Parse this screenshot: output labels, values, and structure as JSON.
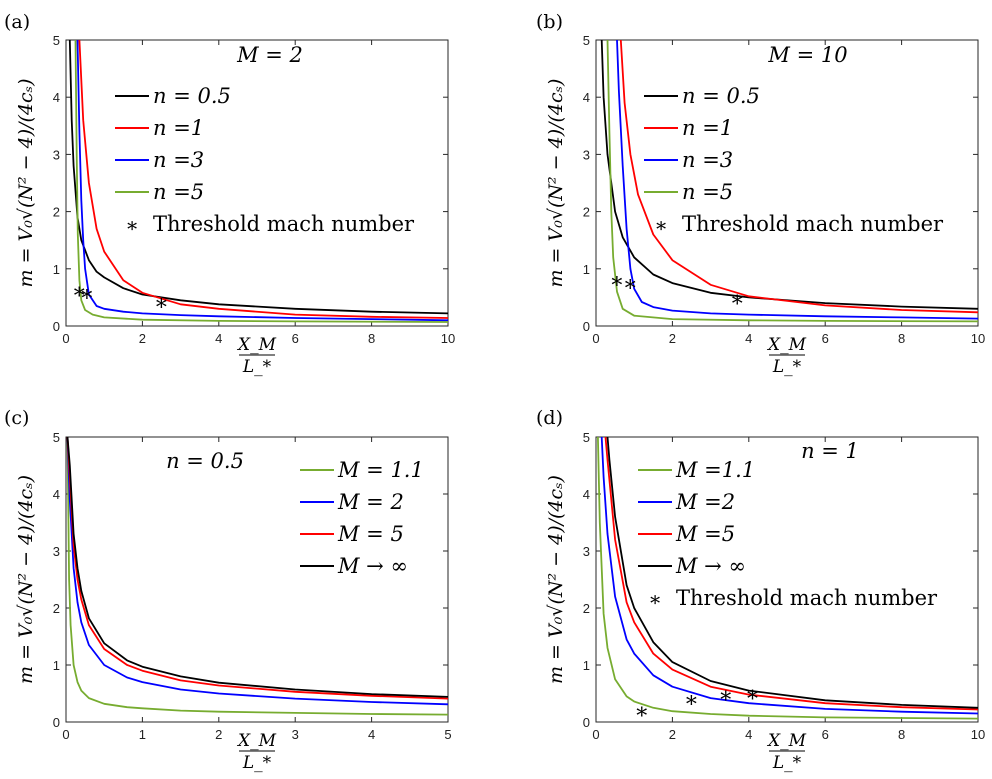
{
  "panels": [
    {
      "label": "(a)",
      "annotation": "M = 2",
      "xlabel_num": "X_M",
      "xlabel_den": "L_*",
      "ylabel": "m = V₀√(N² − 4)/(4cₛ)",
      "chart_data": {
        "type": "line",
        "xlim": [
          0,
          10
        ],
        "ylim": [
          0,
          5
        ],
        "xticks": [
          0,
          2,
          4,
          6,
          8,
          10
        ],
        "yticks": [
          0,
          1,
          2,
          3,
          4,
          5
        ],
        "series": [
          {
            "name": "n = 0.5",
            "color": "#000000",
            "x": [
              0.1,
              0.15,
              0.2,
              0.3,
              0.4,
              0.6,
              0.8,
              1,
              1.5,
              2,
              3,
              4,
              6,
              8,
              10
            ],
            "y": [
              5,
              3.6,
              2.8,
              1.9,
              1.5,
              1.15,
              0.95,
              0.85,
              0.66,
              0.55,
              0.45,
              0.38,
              0.3,
              0.25,
              0.22
            ]
          },
          {
            "name": "n =1",
            "color": "#ff0000",
            "x": [
              0.35,
              0.45,
              0.6,
              0.8,
              1,
              1.5,
              2,
              3,
              4,
              6,
              8,
              10
            ],
            "y": [
              5,
              3.6,
              2.5,
              1.7,
              1.3,
              0.8,
              0.58,
              0.38,
              0.3,
              0.2,
              0.16,
              0.14
            ]
          },
          {
            "name": "n =3",
            "color": "#0000ff",
            "x": [
              0.3,
              0.35,
              0.4,
              0.45,
              0.5,
              0.6,
              0.8,
              1,
              1.5,
              2,
              3,
              4,
              6,
              8,
              10
            ],
            "y": [
              5,
              3.4,
              2.2,
              1.5,
              1.0,
              0.55,
              0.35,
              0.3,
              0.25,
              0.22,
              0.19,
              0.17,
              0.14,
              0.12,
              0.1
            ]
          },
          {
            "name": "n =5",
            "color": "#77ac30",
            "x": [
              0.25,
              0.28,
              0.31,
              0.35,
              0.4,
              0.5,
              0.7,
              1,
              2,
              4,
              6,
              10
            ],
            "y": [
              5,
              3.0,
              1.6,
              0.8,
              0.45,
              0.28,
              0.2,
              0.15,
              0.11,
              0.09,
              0.08,
              0.07
            ]
          }
        ],
        "markers": {
          "name": "Threshold mach number",
          "x": [
            0.35,
            0.55,
            2.5
          ],
          "y": [
            0.62,
            0.58,
            0.42
          ]
        }
      }
    },
    {
      "label": "(b)",
      "annotation": "M = 10",
      "xlabel_num": "X_M",
      "xlabel_den": "L_*",
      "ylabel": "m = V₀√(N² − 4)/(4cₛ)",
      "chart_data": {
        "type": "line",
        "xlim": [
          0,
          10
        ],
        "ylim": [
          0,
          5
        ],
        "xticks": [
          0,
          2,
          4,
          6,
          8,
          10
        ],
        "yticks": [
          0,
          1,
          2,
          3,
          4,
          5
        ],
        "series": [
          {
            "name": "n = 0.5",
            "color": "#000000",
            "x": [
              0.15,
              0.2,
              0.3,
              0.5,
              0.7,
              1,
              1.5,
              2,
              3,
              4,
              6,
              8,
              10
            ],
            "y": [
              5,
              4.0,
              3.0,
              2.0,
              1.55,
              1.2,
              0.9,
              0.75,
              0.58,
              0.5,
              0.4,
              0.34,
              0.3
            ]
          },
          {
            "name": "n =1",
            "color": "#ff0000",
            "x": [
              0.65,
              0.75,
              0.9,
              1.1,
              1.5,
              2,
              3,
              4,
              6,
              8,
              10
            ],
            "y": [
              5,
              3.9,
              3.0,
              2.3,
              1.6,
              1.15,
              0.72,
              0.52,
              0.36,
              0.28,
              0.24
            ]
          },
          {
            "name": "n =3",
            "color": "#0000ff",
            "x": [
              0.55,
              0.6,
              0.7,
              0.8,
              0.9,
              1.0,
              1.2,
              1.5,
              2,
              3,
              4,
              6,
              8,
              10
            ],
            "y": [
              5,
              4.1,
              2.8,
              1.7,
              1.0,
              0.65,
              0.42,
              0.33,
              0.27,
              0.22,
              0.2,
              0.17,
              0.15,
              0.13
            ]
          },
          {
            "name": "n =5",
            "color": "#77ac30",
            "x": [
              0.3,
              0.35,
              0.4,
              0.45,
              0.55,
              0.7,
              1,
              2,
              4,
              6,
              10
            ],
            "y": [
              5,
              3.4,
              2.0,
              1.2,
              0.6,
              0.3,
              0.18,
              0.12,
              0.1,
              0.09,
              0.08
            ]
          }
        ],
        "markers": {
          "name": "Threshold mach number",
          "x": [
            0.55,
            0.9,
            3.7
          ],
          "y": [
            0.8,
            0.75,
            0.48
          ]
        }
      }
    },
    {
      "label": "(c)",
      "annotation": "n = 0.5",
      "xlabel_num": "X_M",
      "xlabel_den": "L_*",
      "ylabel": "m = V₀√(N² − 4)/(4cₛ)",
      "chart_data": {
        "type": "line",
        "xlim": [
          0,
          5
        ],
        "ylim": [
          0,
          5
        ],
        "xticks": [
          0,
          1,
          2,
          3,
          4,
          5
        ],
        "yticks": [
          0,
          1,
          2,
          3,
          4,
          5
        ],
        "series": [
          {
            "name": "M = 1.1",
            "color": "#77ac30",
            "x": [
              0.02,
              0.04,
              0.06,
              0.1,
              0.15,
              0.2,
              0.3,
              0.5,
              0.8,
              1,
              1.5,
              2,
              3,
              4,
              5
            ],
            "y": [
              5,
              2.5,
              1.7,
              1.0,
              0.7,
              0.55,
              0.42,
              0.32,
              0.26,
              0.24,
              0.2,
              0.18,
              0.16,
              0.14,
              0.13
            ]
          },
          {
            "name": "M = 2",
            "color": "#0000ff",
            "x": [
              0.02,
              0.05,
              0.1,
              0.15,
              0.2,
              0.3,
              0.5,
              0.8,
              1,
              1.5,
              2,
              3,
              4,
              5
            ],
            "y": [
              5,
              3.9,
              2.7,
              2.1,
              1.75,
              1.35,
              1.0,
              0.78,
              0.7,
              0.57,
              0.5,
              0.41,
              0.35,
              0.31
            ]
          },
          {
            "name": "M = 5",
            "color": "#ff0000",
            "x": [
              0.02,
              0.05,
              0.1,
              0.15,
              0.2,
              0.3,
              0.5,
              0.8,
              1,
              1.5,
              2,
              3,
              4,
              5
            ],
            "y": [
              5,
              4.3,
              3.1,
              2.5,
              2.15,
              1.7,
              1.28,
              1.0,
              0.9,
              0.73,
              0.64,
              0.53,
              0.46,
              0.41
            ]
          },
          {
            "name": "M → ∞",
            "color": "#000000",
            "x": [
              0.02,
              0.05,
              0.1,
              0.15,
              0.2,
              0.3,
              0.5,
              0.8,
              1,
              1.5,
              2,
              3,
              4,
              5
            ],
            "y": [
              5,
              4.5,
              3.3,
              2.7,
              2.3,
              1.82,
              1.38,
              1.08,
              0.97,
              0.8,
              0.69,
              0.57,
              0.49,
              0.44
            ]
          }
        ]
      }
    },
    {
      "label": "(d)",
      "annotation": "n = 1",
      "xlabel_num": "X_M",
      "xlabel_den": "L_*",
      "ylabel": "m = V₀√(N² − 4)/(4cₛ)",
      "chart_data": {
        "type": "line",
        "xlim": [
          0,
          10
        ],
        "ylim": [
          0,
          5
        ],
        "xticks": [
          0,
          2,
          4,
          6,
          8,
          10
        ],
        "yticks": [
          0,
          1,
          2,
          3,
          4,
          5
        ],
        "series": [
          {
            "name": "M =1.1",
            "color": "#77ac30",
            "x": [
              0.05,
              0.1,
              0.2,
              0.3,
              0.5,
              0.8,
              1,
              1.5,
              2,
              3,
              4,
              6,
              8,
              10
            ],
            "y": [
              5,
              3.5,
              1.9,
              1.3,
              0.75,
              0.45,
              0.36,
              0.25,
              0.19,
              0.14,
              0.11,
              0.08,
              0.07,
              0.06
            ]
          },
          {
            "name": "M =2",
            "color": "#0000ff",
            "x": [
              0.15,
              0.2,
              0.3,
              0.5,
              0.8,
              1,
              1.5,
              2,
              3,
              4,
              6,
              8,
              10
            ],
            "y": [
              5,
              4.3,
              3.3,
              2.2,
              1.45,
              1.2,
              0.82,
              0.62,
              0.42,
              0.33,
              0.23,
              0.18,
              0.15
            ]
          },
          {
            "name": "M =5",
            "color": "#ff0000",
            "x": [
              0.25,
              0.3,
              0.5,
              0.8,
              1,
              1.5,
              2,
              3,
              4,
              6,
              8,
              10
            ],
            "y": [
              5,
              4.6,
              3.2,
              2.1,
              1.75,
              1.2,
              0.92,
              0.62,
              0.48,
              0.33,
              0.26,
              0.22
            ]
          },
          {
            "name": "M → ∞",
            "color": "#000000",
            "x": [
              0.3,
              0.35,
              0.5,
              0.8,
              1,
              1.5,
              2,
              3,
              4,
              6,
              8,
              10
            ],
            "y": [
              5,
              4.6,
              3.6,
              2.4,
              2.0,
              1.4,
              1.05,
              0.72,
              0.55,
              0.38,
              0.3,
              0.25
            ]
          }
        ],
        "markers": {
          "name": "Threshold mach number",
          "x": [
            1.2,
            2.5,
            3.4,
            4.1
          ],
          "y": [
            0.2,
            0.4,
            0.48,
            0.5
          ]
        }
      }
    }
  ]
}
